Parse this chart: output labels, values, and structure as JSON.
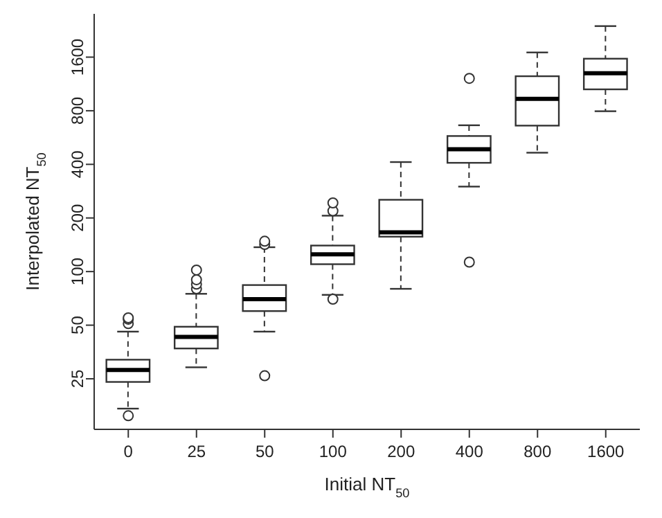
{
  "chart_data": {
    "type": "box",
    "xlabel": "Initial NT$_{50}$",
    "ylabel": "Interpolated NT$_{50}$",
    "categories": [
      "0",
      "25",
      "50",
      "100",
      "200",
      "400",
      "800",
      "1600"
    ],
    "log": "y",
    "ylim": [
      13,
      2800
    ],
    "yticks": [
      25,
      50,
      100,
      200,
      400,
      800,
      1600
    ],
    "grid": false,
    "legend": false,
    "boxes": [
      {
        "low": 17,
        "q1": 24,
        "median": 28,
        "q3": 32,
        "high": 46,
        "outliers": [
          15.5,
          51,
          54,
          55
        ]
      },
      {
        "low": 29,
        "q1": 37,
        "median": 43,
        "q3": 49,
        "high": 75,
        "outliers": [
          80,
          85,
          90,
          102
        ]
      },
      {
        "low": 46,
        "q1": 60,
        "median": 70,
        "q3": 84,
        "high": 137,
        "outliers": [
          26,
          142,
          148
        ]
      },
      {
        "low": 74,
        "q1": 110,
        "median": 125,
        "q3": 140,
        "high": 206,
        "outliers": [
          70,
          219,
          243
        ]
      },
      {
        "low": 80,
        "q1": 157,
        "median": 166,
        "q3": 253,
        "high": 412
      },
      {
        "low": 300,
        "q1": 408,
        "median": 486,
        "q3": 577,
        "high": 663,
        "outliers": [
          113,
          1216
        ]
      },
      {
        "low": 465,
        "q1": 660,
        "median": 932,
        "q3": 1250,
        "high": 1700
      },
      {
        "low": 795,
        "q1": 1055,
        "median": 1300,
        "q3": 1568,
        "high": 2390
      }
    ]
  }
}
